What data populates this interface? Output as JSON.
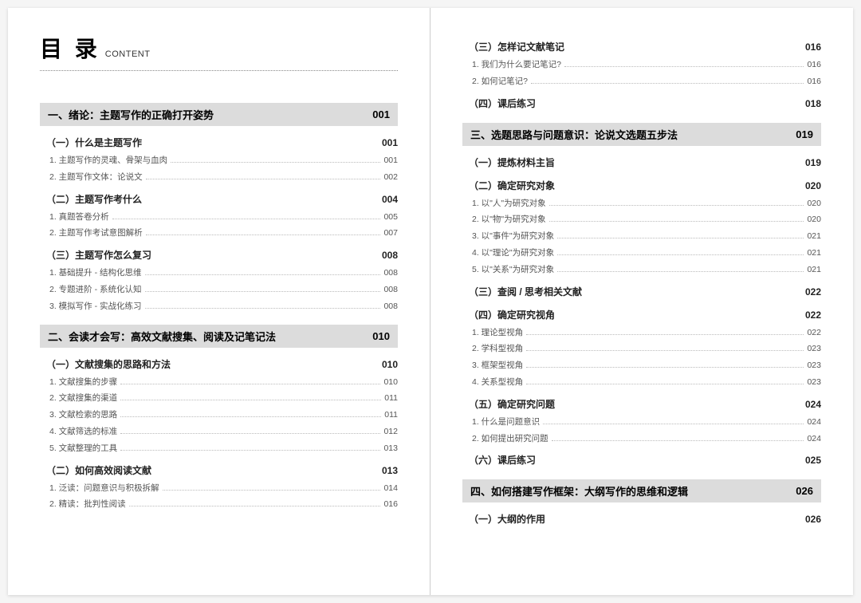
{
  "heading": {
    "zh": "目 录",
    "en": "CONTENT"
  },
  "colors": {
    "chapter_bg": "#dcdcdc",
    "text_main": "#000000",
    "text_sub": "#555555",
    "dot": "#bbbbbb",
    "divider": "#cccccc"
  },
  "left": [
    {
      "type": "chapter",
      "title": "一、绪论：主题写作的正确打开姿势",
      "page": "001"
    },
    {
      "type": "section",
      "title": "（一）什么是主题写作",
      "page": "001"
    },
    {
      "type": "item",
      "title": "1. 主题写作的灵魂、骨架与血肉",
      "page": "001"
    },
    {
      "type": "item",
      "title": "2. 主题写作文体：论说文",
      "page": "002"
    },
    {
      "type": "section",
      "title": "（二）主题写作考什么",
      "page": "004"
    },
    {
      "type": "item",
      "title": "1. 真题答卷分析",
      "page": "005"
    },
    {
      "type": "item",
      "title": "2. 主题写作考试意图解析",
      "page": "007"
    },
    {
      "type": "section",
      "title": "（三）主题写作怎么复习",
      "page": "008"
    },
    {
      "type": "item",
      "title": "1. 基础提升 - 结构化思维",
      "page": "008"
    },
    {
      "type": "item",
      "title": "2. 专题进阶 - 系统化认知",
      "page": "008"
    },
    {
      "type": "item",
      "title": "3. 模拟写作 - 实战化练习",
      "page": "008"
    },
    {
      "type": "chapter",
      "title": "二、会读才会写：高效文献搜集、阅读及记笔记法",
      "page": "010"
    },
    {
      "type": "section",
      "title": "（一）文献搜集的思路和方法",
      "page": "010"
    },
    {
      "type": "item",
      "title": "1. 文献搜集的步骤",
      "page": "010"
    },
    {
      "type": "item",
      "title": "2. 文献搜集的渠道",
      "page": "011"
    },
    {
      "type": "item",
      "title": "3. 文献检索的思路",
      "page": "011"
    },
    {
      "type": "item",
      "title": "4. 文献筛选的标准",
      "page": "012"
    },
    {
      "type": "item",
      "title": "5. 文献整理的工具",
      "page": "013"
    },
    {
      "type": "section",
      "title": "（二）如何高效阅读文献",
      "page": "013"
    },
    {
      "type": "item",
      "title": "1. 泛读：问题意识与积极拆解",
      "page": "014"
    },
    {
      "type": "item",
      "title": "2. 精读：批判性阅读",
      "page": "016"
    }
  ],
  "right": [
    {
      "type": "section",
      "title": "（三）怎样记文献笔记",
      "page": "016"
    },
    {
      "type": "item",
      "title": "1. 我们为什么要记笔记?",
      "page": "016"
    },
    {
      "type": "item",
      "title": "2. 如何记笔记?",
      "page": "016"
    },
    {
      "type": "section",
      "title": "（四）课后练习",
      "page": "018"
    },
    {
      "type": "chapter",
      "title": "三、选题思路与问题意识：论说文选题五步法",
      "page": "019"
    },
    {
      "type": "section",
      "title": "（一）提炼材料主旨",
      "page": "019"
    },
    {
      "type": "section",
      "title": "（二）确定研究对象",
      "page": "020"
    },
    {
      "type": "item",
      "title": "1. 以\"人\"为研究对象",
      "page": "020"
    },
    {
      "type": "item",
      "title": "2. 以\"物\"为研究对象",
      "page": "020"
    },
    {
      "type": "item",
      "title": "3. 以\"事件\"为研究对象",
      "page": "021"
    },
    {
      "type": "item",
      "title": "4. 以\"理论\"为研究对象",
      "page": "021"
    },
    {
      "type": "item",
      "title": "5. 以\"关系\"为研究对象",
      "page": "021"
    },
    {
      "type": "section",
      "title": "（三）查阅 / 思考相关文献",
      "page": "022"
    },
    {
      "type": "section",
      "title": "（四）确定研究视角",
      "page": "022"
    },
    {
      "type": "item",
      "title": "1. 理论型视角",
      "page": "022"
    },
    {
      "type": "item",
      "title": "2. 学科型视角",
      "page": "023"
    },
    {
      "type": "item",
      "title": "3. 框架型视角",
      "page": "023"
    },
    {
      "type": "item",
      "title": "4. 关系型视角",
      "page": "023"
    },
    {
      "type": "section",
      "title": "（五）确定研究问题",
      "page": "024"
    },
    {
      "type": "item",
      "title": "1. 什么是问题意识",
      "page": "024"
    },
    {
      "type": "item",
      "title": "2. 如何提出研究问题",
      "page": "024"
    },
    {
      "type": "section",
      "title": "（六）课后练习",
      "page": "025"
    },
    {
      "type": "chapter",
      "title": "四、如何搭建写作框架：大纲写作的思维和逻辑",
      "page": "026"
    },
    {
      "type": "section",
      "title": "（一）大纲的作用",
      "page": "026"
    }
  ]
}
